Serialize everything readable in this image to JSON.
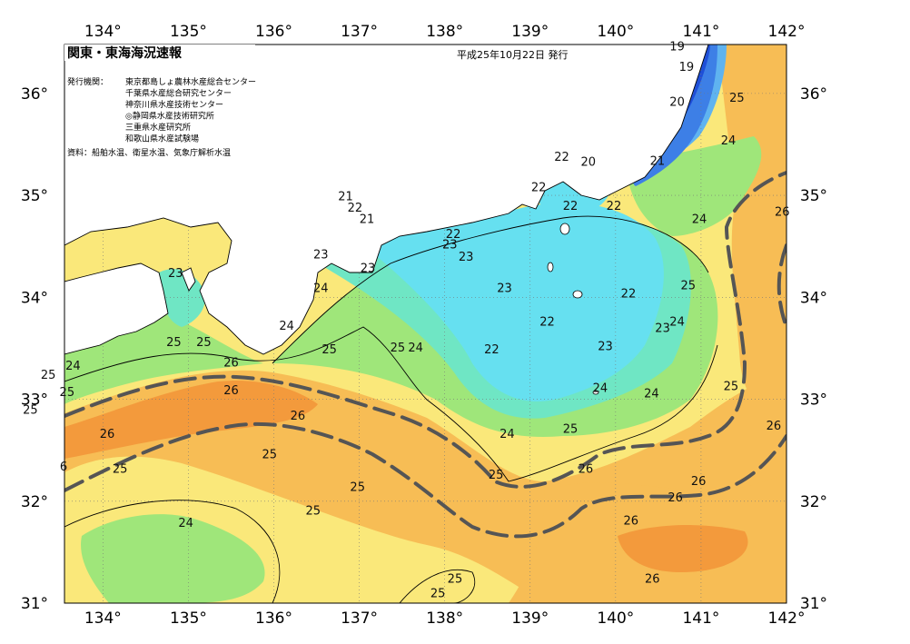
{
  "header": {
    "title": "関東・東海海況速報",
    "date": "平成25年10月22日 発行"
  },
  "issuers": {
    "label": "発行機関：",
    "items": [
      "東京都島しょ農林水産総合センター",
      "千葉県水産総合研究センター",
      "神奈川県水産技術センター",
      "◎静岡県水産技術研究所",
      "三重県水産研究所",
      "和歌山県水産試験場"
    ]
  },
  "source": "資料：船舶水温、衛星水温、気象庁解析水温",
  "axes": {
    "lon_ticks": [
      "134°",
      "135°",
      "136°",
      "137°",
      "138°",
      "139°",
      "140°",
      "141°",
      "142°"
    ],
    "lat_ticks": [
      "36°",
      "35°",
      "34°",
      "33°",
      "32°",
      "31°"
    ]
  },
  "colors": {
    "t19": "#1f4fd8",
    "t20": "#3d7fe6",
    "t21": "#5fb3f0",
    "t22": "#66e0f0",
    "t23": "#6fe6c4",
    "t24": "#9fe67a",
    "t25": "#fae87a",
    "t26": "#f7bd55",
    "t27": "#f39a3c",
    "land": "#ffffff",
    "kuroshio_line": "#555555"
  },
  "temperature_labels": [
    {
      "text": "19",
      "lon": 140.72,
      "lat": 36.42
    },
    {
      "text": "19",
      "lon": 140.83,
      "lat": 36.22
    },
    {
      "text": "20",
      "lon": 140.72,
      "lat": 35.88
    },
    {
      "text": "25",
      "lon": 141.42,
      "lat": 35.92
    },
    {
      "text": "24",
      "lon": 141.32,
      "lat": 35.5
    },
    {
      "text": "21",
      "lon": 140.49,
      "lat": 35.3
    },
    {
      "text": "22",
      "lon": 139.37,
      "lat": 35.34
    },
    {
      "text": "20",
      "lon": 139.68,
      "lat": 35.29
    },
    {
      "text": "22",
      "lon": 139.1,
      "lat": 35.04
    },
    {
      "text": "22",
      "lon": 139.47,
      "lat": 34.86
    },
    {
      "text": "22",
      "lon": 139.98,
      "lat": 34.86
    },
    {
      "text": "21",
      "lon": 136.84,
      "lat": 34.95
    },
    {
      "text": "22",
      "lon": 136.95,
      "lat": 34.84
    },
    {
      "text": "21",
      "lon": 137.09,
      "lat": 34.73
    },
    {
      "text": "24",
      "lon": 140.98,
      "lat": 34.73
    },
    {
      "text": "26",
      "lon": 141.95,
      "lat": 34.8
    },
    {
      "text": "22",
      "lon": 138.1,
      "lat": 34.58
    },
    {
      "text": "23",
      "lon": 138.06,
      "lat": 34.48
    },
    {
      "text": "23",
      "lon": 138.25,
      "lat": 34.36
    },
    {
      "text": "23",
      "lon": 136.55,
      "lat": 34.38
    },
    {
      "text": "23",
      "lon": 134.85,
      "lat": 34.2
    },
    {
      "text": "23",
      "lon": 137.1,
      "lat": 34.25
    },
    {
      "text": "24",
      "lon": 136.55,
      "lat": 34.05
    },
    {
      "text": "23",
      "lon": 138.7,
      "lat": 34.05
    },
    {
      "text": "22",
      "lon": 140.15,
      "lat": 34.0
    },
    {
      "text": "25",
      "lon": 140.85,
      "lat": 34.08
    },
    {
      "text": "24",
      "lon": 136.15,
      "lat": 33.68
    },
    {
      "text": "22",
      "lon": 139.2,
      "lat": 33.72
    },
    {
      "text": "24",
      "lon": 140.72,
      "lat": 33.72
    },
    {
      "text": "23",
      "lon": 140.55,
      "lat": 33.66
    },
    {
      "text": "25",
      "lon": 134.83,
      "lat": 33.52
    },
    {
      "text": "25",
      "lon": 135.18,
      "lat": 33.52
    },
    {
      "text": "25",
      "lon": 136.65,
      "lat": 33.45
    },
    {
      "text": "25",
      "lon": 137.45,
      "lat": 33.47
    },
    {
      "text": "24",
      "lon": 137.66,
      "lat": 33.47
    },
    {
      "text": "22",
      "lon": 138.55,
      "lat": 33.45
    },
    {
      "text": "23",
      "lon": 139.88,
      "lat": 33.48
    },
    {
      "text": "26",
      "lon": 135.5,
      "lat": 33.32
    },
    {
      "text": "24",
      "lon": 133.65,
      "lat": 33.29
    },
    {
      "text": "25",
      "lon": 133.36,
      "lat": 33.2
    },
    {
      "text": "25",
      "lon": 141.35,
      "lat": 33.09
    },
    {
      "text": "24",
      "lon": 139.82,
      "lat": 33.07
    },
    {
      "text": "24",
      "lon": 140.42,
      "lat": 33.02
    },
    {
      "text": "25",
      "lon": 133.58,
      "lat": 33.03
    },
    {
      "text": "26",
      "lon": 135.5,
      "lat": 33.05
    },
    {
      "text": "25",
      "lon": 133.15,
      "lat": 32.86
    },
    {
      "text": "26",
      "lon": 136.28,
      "lat": 32.8
    },
    {
      "text": "26",
      "lon": 141.85,
      "lat": 32.7
    },
    {
      "text": "25",
      "lon": 139.47,
      "lat": 32.67
    },
    {
      "text": "24",
      "lon": 138.73,
      "lat": 32.62
    },
    {
      "text": "26",
      "lon": 134.05,
      "lat": 32.62
    },
    {
      "text": "25",
      "lon": 135.95,
      "lat": 32.42
    },
    {
      "text": "6",
      "lon": 133.54,
      "lat": 32.3
    },
    {
      "text": "25",
      "lon": 134.2,
      "lat": 32.28
    },
    {
      "text": "26",
      "lon": 139.65,
      "lat": 32.28
    },
    {
      "text": "25",
      "lon": 138.6,
      "lat": 32.22
    },
    {
      "text": "26",
      "lon": 140.97,
      "lat": 32.16
    },
    {
      "text": "25",
      "lon": 136.98,
      "lat": 32.1
    },
    {
      "text": "26",
      "lon": 140.7,
      "lat": 32.0
    },
    {
      "text": "25",
      "lon": 136.46,
      "lat": 31.87
    },
    {
      "text": "24",
      "lon": 134.97,
      "lat": 31.75
    },
    {
      "text": "26",
      "lon": 140.18,
      "lat": 31.77
    },
    {
      "text": "26",
      "lon": 140.43,
      "lat": 31.2
    },
    {
      "text": "25",
      "lon": 138.12,
      "lat": 31.2
    },
    {
      "text": "25",
      "lon": 137.92,
      "lat": 31.06
    }
  ]
}
